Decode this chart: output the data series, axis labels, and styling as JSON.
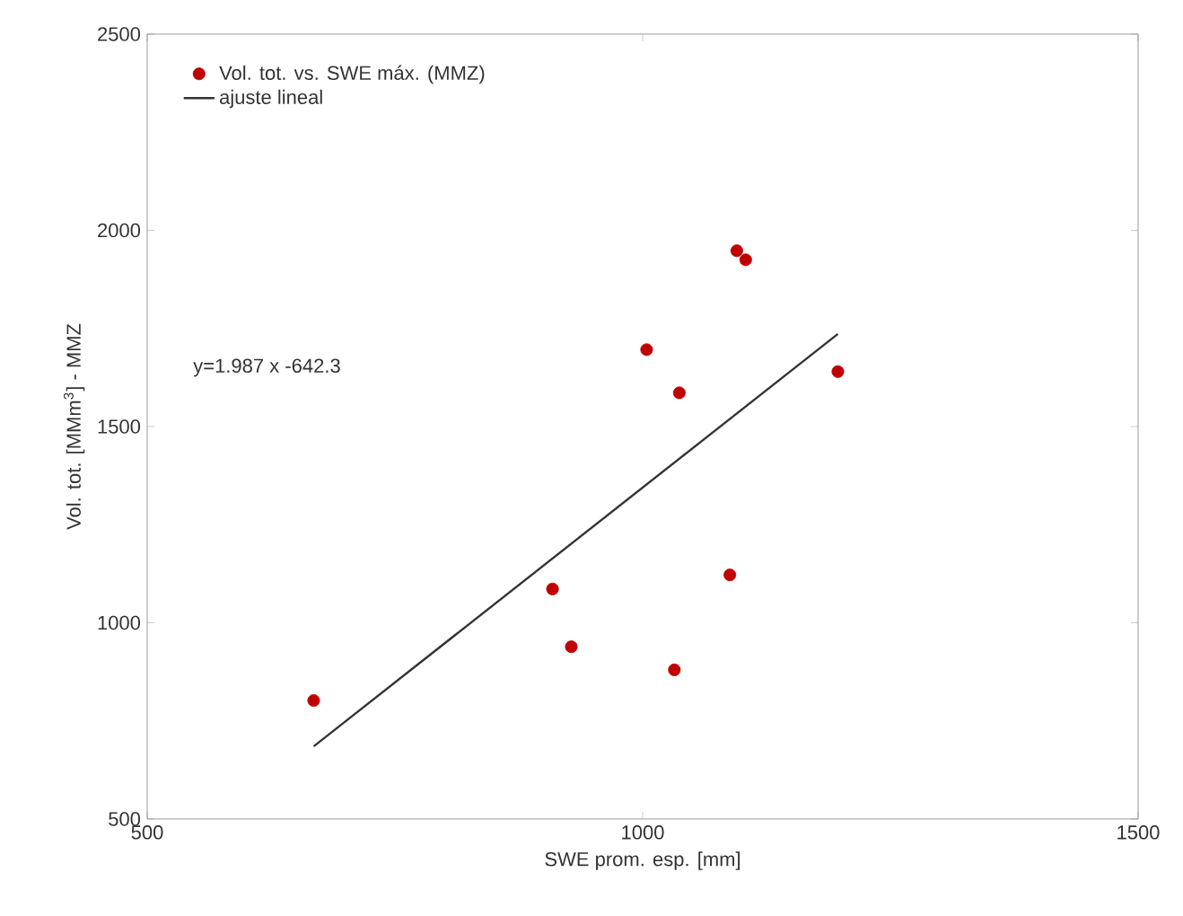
{
  "chart_data": {
    "type": "scatter",
    "xlabel": "SWE prom. esp. [mm]",
    "ylabel": "Vol. tot. [MMm$^{3}$] - MMZ",
    "xlim": [
      500,
      1500
    ],
    "xticks": [
      500,
      1000,
      1500
    ],
    "ylim": [
      500,
      2500
    ],
    "yticks": [
      500,
      1000,
      1500,
      2000,
      2500
    ],
    "legend": "top left",
    "grid": false,
    "annotations": [
      "y=1.987 x -642.3"
    ],
    "series": [
      {
        "name": "Vol. tot. vs. SWE máx. (MMZ)",
        "marker": "circle",
        "color": "#c00000",
        "x": [
          668,
          909,
          928,
          1032,
          1088,
          1004,
          1037,
          1095,
          1104,
          1197
        ],
        "values": [
          802,
          1086,
          939,
          880,
          1122,
          1696,
          1586,
          1948,
          1925,
          1640
        ]
      },
      {
        "name": "ajuste lineal",
        "type": "line",
        "marker": "none",
        "color": "#333333",
        "line_style": "solid",
        "x": [
          668,
          1197
        ],
        "values": [
          685,
          1736
        ]
      }
    ]
  }
}
